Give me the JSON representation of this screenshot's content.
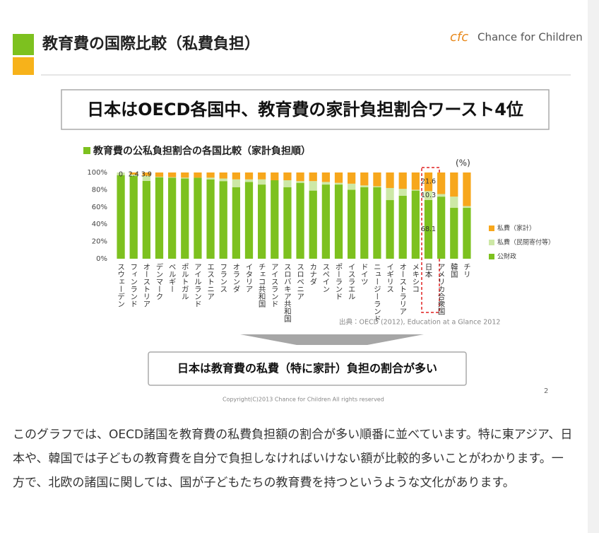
{
  "header": {
    "title": "教育費の国際比較（私費負担）",
    "logo": "Chance for Children"
  },
  "headline": "日本はOECD各国中、教育費の家計負担割合ワースト4位",
  "chart_data": {
    "type": "stacked_bar",
    "title": "教育費の公私負担割合の各国比較（家計負担順）",
    "unit": "(%)",
    "categories": [
      "スウェーデン",
      "フィンランド",
      "オーストリア",
      "デンマーク",
      "ベルギー",
      "ポルトガル",
      "アイルランド",
      "エストニア",
      "フランス",
      "オランダ",
      "イタリア",
      "チェコ共和国",
      "アイスランド",
      "スロバキア共和国",
      "スロベニア",
      "カナダ",
      "スペイン",
      "ポーランド",
      "イスラエル",
      "ドイツ",
      "ニュージーランド",
      "イギリス",
      "オーストラリア",
      "メキシコ",
      "日本",
      "アメリカ合衆国",
      "韓国",
      "チリ"
    ],
    "series": [
      {
        "name": "公財政",
        "color": "#7dc11f",
        "values": [
          97,
          96,
          90.3,
          94.5,
          94,
          93,
          94,
          92,
          90,
          83,
          89,
          86,
          91,
          83,
          88,
          79,
          86,
          86,
          80,
          83,
          83,
          68,
          73,
          79,
          68.1,
          72,
          59,
          59
        ],
        "value_labels": [
          null,
          null,
          null,
          null,
          null,
          null,
          null,
          null,
          null,
          null,
          null,
          null,
          null,
          null,
          null,
          null,
          null,
          null,
          null,
          null,
          null,
          null,
          null,
          null,
          "68.1",
          null,
          null,
          null
        ]
      },
      {
        "name": "私費（民間寄付等）",
        "color": "#cde8a6",
        "values": [
          3,
          1.6,
          5.8,
          0.5,
          0.5,
          1,
          0,
          2,
          3,
          9,
          3,
          6,
          0,
          8,
          2,
          11,
          3,
          2,
          7,
          2,
          1,
          14,
          8,
          1,
          10.3,
          3,
          13,
          2
        ],
        "value_labels": [
          null,
          null,
          null,
          null,
          null,
          null,
          null,
          null,
          null,
          null,
          null,
          null,
          null,
          null,
          null,
          null,
          null,
          null,
          null,
          null,
          null,
          null,
          null,
          null,
          "10.3",
          null,
          null,
          null
        ]
      },
      {
        "name": "私費（家計）",
        "color": "#f7a71c",
        "values": [
          0,
          2.4,
          3.9,
          5,
          5.5,
          6,
          6,
          6,
          7,
          8,
          8,
          8,
          9,
          9,
          10,
          10,
          11,
          12,
          13,
          15,
          16,
          18,
          19,
          20,
          21.6,
          25,
          28,
          39
        ],
        "value_labels": [
          "0",
          "2.4",
          "3.9",
          null,
          null,
          null,
          null,
          null,
          null,
          null,
          null,
          null,
          null,
          null,
          null,
          null,
          null,
          null,
          null,
          null,
          null,
          null,
          null,
          null,
          "21.6",
          null,
          null,
          null
        ]
      }
    ],
    "ylim": [
      0,
      100
    ],
    "yticks": [
      {
        "value": 0,
        "label": "0%"
      },
      {
        "value": 20,
        "label": "20%"
      },
      {
        "value": 40,
        "label": "40%"
      },
      {
        "value": 60,
        "label": "60%"
      },
      {
        "value": 80,
        "label": "80%"
      },
      {
        "value": 100,
        "label": "100%"
      }
    ],
    "legend": "right",
    "source": "出典：OECD (2012), Education at a Glance 2012"
  },
  "conclusion": "日本は教育費の私費（特に家計）負担の割合が多い",
  "copyright": "Copyright(C)2013 Chance for Children All rights reserved",
  "page_number": "2",
  "paragraph": "このグラフでは、OECD諸国を教育費の私費負担額の割合が多い順番に並べています。特に東アジア、日本や、韓国では子どもの教育費を自分で負担しなければいけない額が比較的多いことがわかります。一方で、北欧の諸国に関しては、国が子どもたちの教育費を持つというような文化があります。"
}
